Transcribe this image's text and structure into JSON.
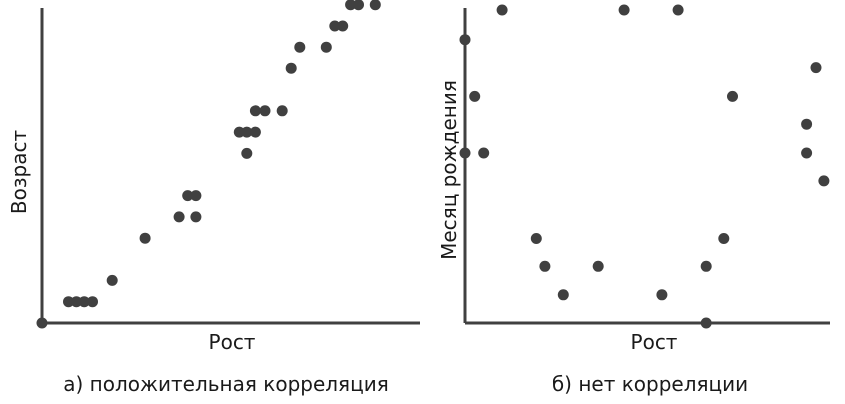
{
  "chart_data": [
    {
      "type": "scatter",
      "caption": "а) положительная корреляция",
      "xlabel": "Рост",
      "ylabel": "Возраст",
      "xlim": [
        0,
        100
      ],
      "ylim": [
        0,
        100
      ],
      "grid": false,
      "points": [
        [
          0,
          0
        ],
        [
          7.4,
          6.8
        ],
        [
          9.6,
          6.8
        ],
        [
          11.8,
          6.8
        ],
        [
          14.1,
          6.8
        ],
        [
          19.6,
          13.6
        ],
        [
          28.8,
          27.1
        ],
        [
          38.3,
          33.9
        ],
        [
          40.7,
          40.7
        ],
        [
          43.0,
          33.9
        ],
        [
          43.0,
          40.7
        ],
        [
          55.1,
          61.0
        ],
        [
          57.2,
          54.2
        ],
        [
          57.2,
          61.0
        ],
        [
          59.6,
          61.0
        ],
        [
          59.6,
          67.8
        ],
        [
          62.3,
          67.8
        ],
        [
          67.1,
          67.8
        ],
        [
          69.6,
          81.4
        ],
        [
          72.0,
          88.1
        ],
        [
          79.4,
          88.1
        ],
        [
          81.8,
          94.9
        ],
        [
          84.0,
          94.9
        ],
        [
          86.2,
          101.7
        ],
        [
          88.4,
          101.7
        ],
        [
          93.1,
          101.7
        ]
      ]
    },
    {
      "type": "scatter",
      "caption": "б) нет корреляции",
      "xlabel": "Рост",
      "ylabel": "Месяц рождения",
      "xlim": [
        0,
        100
      ],
      "ylim": [
        0,
        100
      ],
      "grid": false,
      "points": [
        [
          0,
          90.5
        ],
        [
          2.7,
          72.4
        ],
        [
          0,
          54.3
        ],
        [
          5.2,
          54.3
        ],
        [
          10.3,
          100
        ],
        [
          19.8,
          27.0
        ],
        [
          22.2,
          18.1
        ],
        [
          27.3,
          9.0
        ],
        [
          37.0,
          18.1
        ],
        [
          44.2,
          100
        ],
        [
          54.7,
          9.0
        ],
        [
          59.2,
          100
        ],
        [
          67.0,
          18.1
        ],
        [
          67.0,
          0
        ],
        [
          71.9,
          27.0
        ],
        [
          74.3,
          72.4
        ],
        [
          94.9,
          63.5
        ],
        [
          97.5,
          81.6
        ],
        [
          94.9,
          54.3
        ],
        [
          99.7,
          45.4
        ]
      ]
    }
  ]
}
